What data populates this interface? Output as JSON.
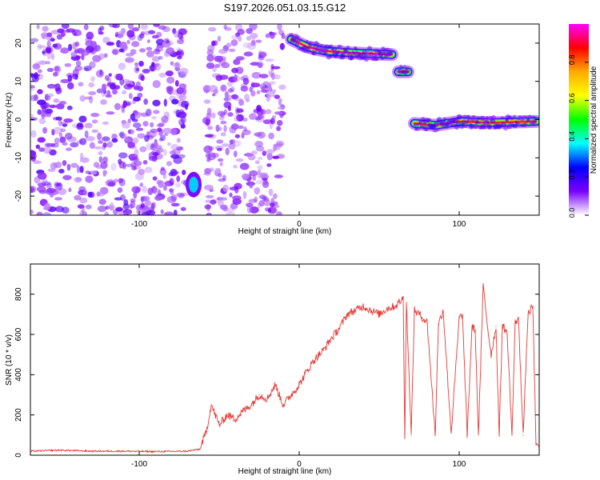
{
  "title": "S197.2026.051.03.15.G12",
  "colors": {
    "snr_line": "#e53935",
    "spec_background": "#ffffff",
    "frame": "#000000"
  },
  "colorbar": {
    "label": "Normalized spectral amplitude",
    "range": [
      0.0,
      1.0
    ],
    "ticks": [
      "0.0",
      "0.2",
      "0.4",
      "0.6",
      "0.8"
    ],
    "tick_values": [
      0.0,
      0.2,
      0.4,
      0.6,
      0.8
    ],
    "palette": [
      "#ff00ff",
      "#ff0000",
      "#ffaa00",
      "#ffff00",
      "#00ff00",
      "#00ffff",
      "#0000ff",
      "#7a00ff",
      "#ffffff"
    ]
  },
  "chart_data": [
    {
      "type": "heatmap",
      "name": "spectrogram",
      "xlabel": "Height of straight line (km)",
      "ylabel": "Frequency (Hz)",
      "xlim": [
        -168,
        150
      ],
      "ylim": [
        -25,
        25
      ],
      "xticks": [
        -100,
        0,
        100
      ],
      "xtick_labels": [
        "-100",
        "0",
        "100"
      ],
      "yticks": [
        -20,
        -10,
        0,
        10,
        20
      ],
      "ytick_labels": [
        "-20",
        "-10",
        "0",
        "10",
        "20"
      ],
      "features": [
        {
          "description": "noise",
          "x_range": [
            -168,
            -70
          ],
          "y_range": [
            -25,
            25
          ],
          "amplitude": 0.1
        },
        {
          "description": "noise",
          "x_range": [
            -58,
            -10
          ],
          "y_range": [
            -25,
            25
          ],
          "amplitude": 0.08
        },
        {
          "description": "blob",
          "x": -66,
          "y": -17,
          "amplitude": 0.35
        },
        {
          "description": "ridge",
          "points": [
            [
              -5,
              21
            ],
            [
              0,
              20
            ],
            [
              5,
              19
            ],
            [
              15,
              18
            ],
            [
              30,
              17.5
            ],
            [
              58,
              17
            ]
          ],
          "amplitude": 0.95
        },
        {
          "description": "ridge",
          "points": [
            [
              62,
              12.5
            ],
            [
              68,
              12.5
            ]
          ],
          "amplitude": 0.9
        },
        {
          "description": "ridge",
          "points": [
            [
              72,
              -1
            ],
            [
              85,
              -1.5
            ],
            [
              100,
              -0.5
            ],
            [
              120,
              -0.8
            ],
            [
              148,
              -0.5
            ]
          ],
          "amplitude": 0.85
        }
      ]
    },
    {
      "type": "line",
      "name": "snr",
      "xlabel": "Height of straight line (km)",
      "ylabel": "SNR (10 * v/v)",
      "xlim": [
        -168,
        150
      ],
      "ylim": [
        0,
        950
      ],
      "xticks": [
        -100,
        0,
        100
      ],
      "xtick_labels": [
        "-100",
        "0",
        "100"
      ],
      "yticks": [
        0,
        200,
        400,
        600,
        800
      ],
      "ytick_labels": [
        "0",
        "200",
        "400",
        "600",
        "800"
      ],
      "series": [
        {
          "name": "SNR",
          "x": [
            -168,
            -150,
            -130,
            -110,
            -90,
            -70,
            -62,
            -58,
            -55,
            -50,
            -45,
            -40,
            -35,
            -30,
            -25,
            -20,
            -15,
            -10,
            -5,
            0,
            5,
            10,
            15,
            20,
            25,
            30,
            35,
            40,
            45,
            50,
            55,
            60,
            65,
            66,
            67,
            70,
            72,
            75,
            80,
            85,
            87,
            90,
            95,
            100,
            102,
            105,
            108,
            110,
            112,
            115,
            118,
            120,
            123,
            125,
            127,
            130,
            133,
            135,
            137,
            140,
            143,
            146,
            148,
            150
          ],
          "values": [
            20,
            25,
            20,
            20,
            18,
            20,
            30,
            120,
            250,
            150,
            200,
            180,
            220,
            250,
            300,
            280,
            350,
            250,
            300,
            350,
            420,
            480,
            520,
            580,
            630,
            700,
            720,
            740,
            720,
            700,
            730,
            740,
            780,
            100,
            760,
            100,
            720,
            700,
            660,
            100,
            650,
            720,
            110,
            680,
            700,
            100,
            640,
            620,
            100,
            840,
            620,
            500,
            640,
            100,
            650,
            600,
            100,
            660,
            680,
            100,
            700,
            740,
            60,
            40
          ]
        }
      ]
    }
  ]
}
